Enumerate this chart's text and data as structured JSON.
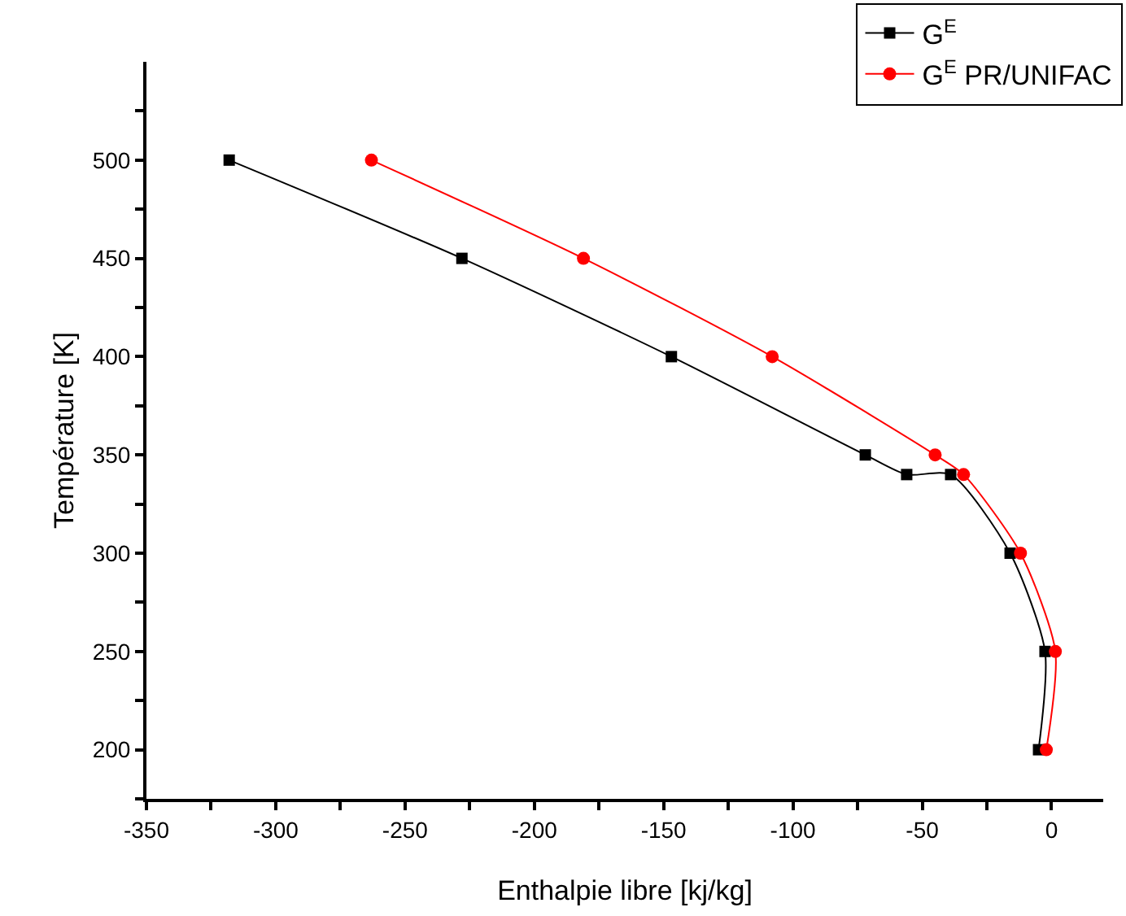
{
  "chart_data": {
    "type": "line",
    "xlabel": "Enthalpie libre [kj/kg]",
    "ylabel": "Température [K]",
    "xlim": [
      -350,
      20
    ],
    "ylim": [
      175,
      550
    ],
    "xticks": [
      -350,
      {
        "value": -325,
        "label": null
      },
      -300,
      {
        "value": -275,
        "label": null
      },
      -250,
      {
        "value": -225,
        "label": null
      },
      -200,
      {
        "value": -175,
        "label": null
      },
      -150,
      {
        "value": -125,
        "label": null
      },
      -100,
      {
        "value": -75,
        "label": null
      },
      -50,
      {
        "value": -25,
        "label": null
      },
      0
    ],
    "yticks": [
      {
        "value": 175,
        "label": null
      },
      200,
      {
        "value": 225,
        "label": null
      },
      250,
      {
        "value": 275,
        "label": null
      },
      300,
      {
        "value": 325,
        "label": null
      },
      350,
      {
        "value": 375,
        "label": null
      },
      400,
      {
        "value": 425,
        "label": null
      },
      450,
      {
        "value": 475,
        "label": null
      },
      500,
      {
        "value": 525,
        "label": null
      }
    ],
    "grid": false,
    "legend": "top right",
    "line_style": "solid",
    "series": [
      {
        "name": "G$^{E}$",
        "color": "#000000",
        "marker": "square",
        "x": [
          -318,
          -228,
          -147,
          -72,
          -56,
          -39,
          -16,
          -2.5,
          -5
        ],
        "values": [
          500,
          450,
          400,
          350,
          340,
          340,
          300,
          250,
          200
        ]
      },
      {
        "name": "G$^{E}$ PR/UNIFAC",
        "color": "#ff0000",
        "marker": "circle",
        "x": [
          -263,
          -181,
          -108,
          -45,
          -34,
          -12,
          1.5,
          -2
        ],
        "values": [
          500,
          450,
          400,
          350,
          340,
          300,
          250,
          200
        ]
      }
    ]
  }
}
